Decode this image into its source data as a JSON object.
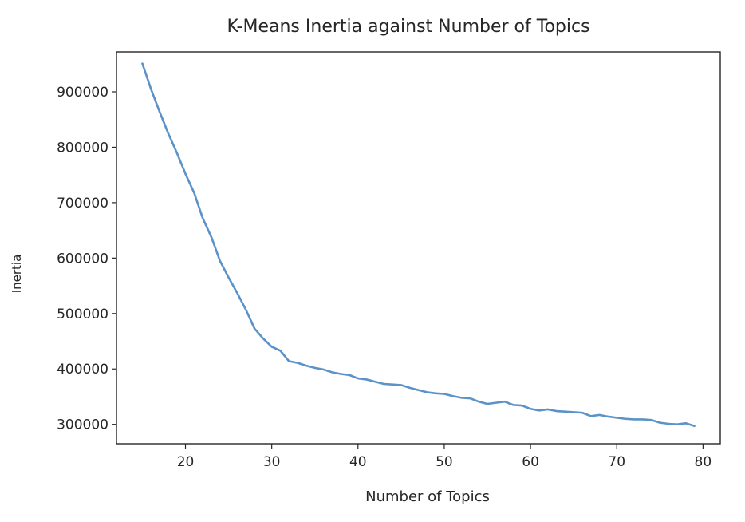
{
  "chart_data": {
    "type": "line",
    "title": "K-Means Inertia against Number of Topics",
    "xlabel": "Number of Topics",
    "ylabel": "Inertia",
    "xlim": [
      12,
      82
    ],
    "ylim": [
      265000,
      972000
    ],
    "xticks": [
      "20",
      "30",
      "40",
      "50",
      "60",
      "70",
      "80"
    ],
    "yticks": [
      "300000",
      "400000",
      "500000",
      "600000",
      "700000",
      "800000",
      "900000"
    ],
    "grid": false,
    "legend": "none",
    "series_color": "#5b92c7",
    "series": [
      {
        "x": [
          15,
          16,
          17,
          18,
          19,
          20,
          21,
          22,
          23,
          24,
          25,
          26,
          27,
          28,
          29,
          30,
          31,
          32,
          33,
          34,
          35,
          36,
          37,
          38,
          39,
          40,
          41,
          42,
          43,
          44,
          45,
          46,
          47,
          48,
          49,
          50,
          51,
          52,
          53,
          54,
          55,
          56,
          57,
          58,
          59,
          60,
          61,
          62,
          63,
          64,
          65,
          66,
          67,
          68,
          69,
          70,
          71,
          72,
          73,
          74,
          75,
          76,
          77,
          78,
          79
        ],
        "values": [
          951000,
          905000,
          864000,
          825000,
          790000,
          752000,
          718000,
          672000,
          638000,
          595000,
          565000,
          537000,
          507000,
          473000,
          455000,
          440000,
          433000,
          414000,
          411000,
          406000,
          402000,
          399000,
          394000,
          391000,
          389000,
          383000,
          381000,
          377000,
          373000,
          372000,
          371000,
          366000,
          362000,
          358000,
          356000,
          355000,
          351000,
          348000,
          347000,
          341000,
          337000,
          339000,
          341000,
          335000,
          334000,
          328000,
          325000,
          327000,
          324000,
          323000,
          322000,
          321000,
          315000,
          317000,
          314000,
          312000,
          310000,
          309000,
          309000,
          308000,
          303000,
          301000,
          300000,
          302000,
          297000
        ]
      }
    ]
  }
}
